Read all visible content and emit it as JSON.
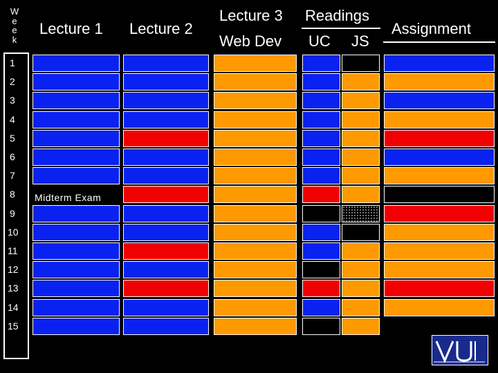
{
  "headers": {
    "week_letters": [
      "W",
      "e",
      "e",
      "k"
    ],
    "lecture1": "Lecture 1",
    "lecture2": "Lecture 2",
    "lecture3": "Lecture 3",
    "web_dev": "Web Dev",
    "readings": "Readings",
    "uc": "UC",
    "js": "JS",
    "assignment": "Assignment"
  },
  "weeks": [
    "1",
    "2",
    "3",
    "4",
    "5",
    "6",
    "7",
    "8",
    "9",
    "10",
    "11",
    "12",
    "13",
    "14",
    "15"
  ],
  "midterm_label": "Midterm Exam",
  "logo_text": "VU",
  "colors": {
    "blue": "#0a22f0",
    "red": "#f00000",
    "orange": "#ff9900",
    "black": "#000000",
    "hatch": "hatch",
    "none": "none"
  },
  "schedule": {
    "lecture1": [
      "blue",
      "blue",
      "blue",
      "blue",
      "blue",
      "blue",
      "blue",
      "none",
      "blue",
      "blue",
      "blue",
      "blue",
      "blue",
      "blue",
      "blue"
    ],
    "lecture2": [
      "blue",
      "blue",
      "blue",
      "blue",
      "red",
      "blue",
      "blue",
      "red",
      "blue",
      "blue",
      "red",
      "blue",
      "red",
      "blue",
      "blue"
    ],
    "web_dev": [
      "orange",
      "orange",
      "orange",
      "orange",
      "orange",
      "orange",
      "orange",
      "orange",
      "orange",
      "orange",
      "orange",
      "orange",
      "orange",
      "orange",
      "orange"
    ],
    "uc": [
      "blue",
      "blue",
      "blue",
      "blue",
      "blue",
      "blue",
      "blue",
      "red",
      "black",
      "blue",
      "blue",
      "black",
      "red",
      "blue",
      "black"
    ],
    "js": [
      "black",
      "orange",
      "orange",
      "orange",
      "orange",
      "orange",
      "orange",
      "orange",
      "hatch",
      "black",
      "orange",
      "orange",
      "orange",
      "orange",
      "orange"
    ],
    "assignment": [
      "blue",
      "orange",
      "blue",
      "orange",
      "red",
      "blue",
      "orange",
      "black",
      "red",
      "orange",
      "orange",
      "orange",
      "red",
      "orange",
      "none"
    ]
  }
}
